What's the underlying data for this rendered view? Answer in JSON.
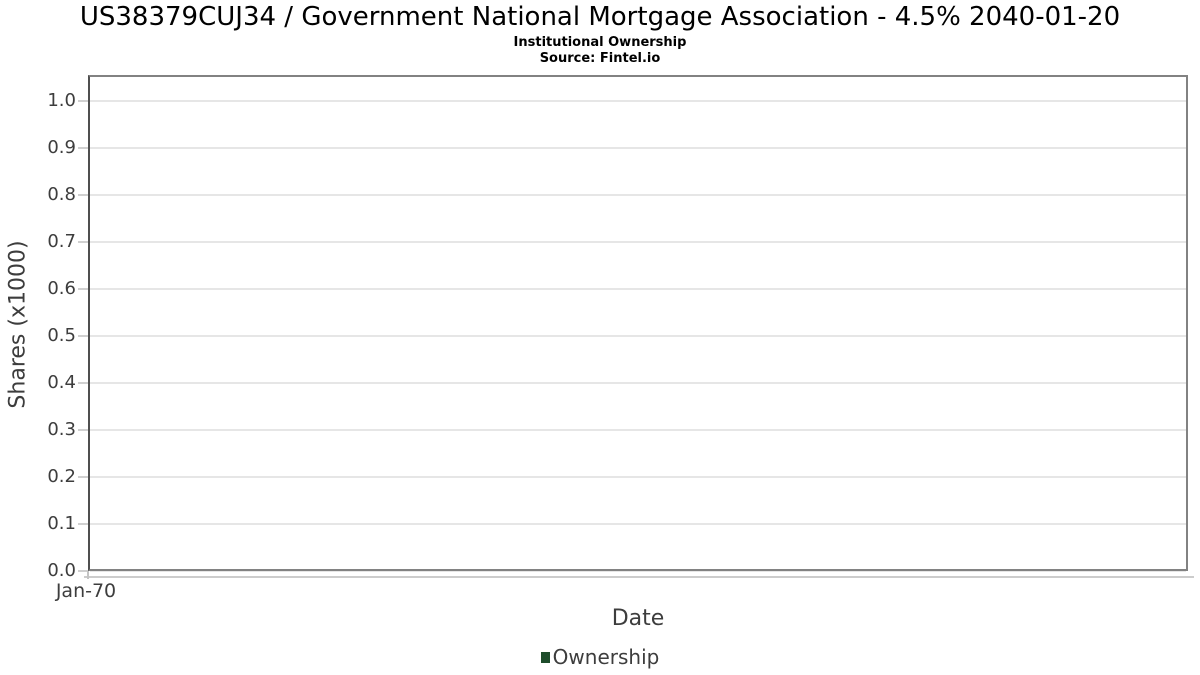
{
  "chart_data": {
    "type": "line",
    "title": "US38379CUJ34 / Government National Mortgage Association - 4.5% 2040-01-20",
    "subtitle": "Institutional Ownership",
    "source": "Source: Fintel.io",
    "xlabel": "Date",
    "ylabel": "Shares (x1000)",
    "ylim": [
      0.0,
      1.055
    ],
    "yticks": [
      0.0,
      0.1,
      0.2,
      0.3,
      0.4,
      0.5,
      0.6,
      0.7,
      0.8,
      0.9,
      1.0
    ],
    "yticklabels": [
      "0.0",
      "0.1",
      "0.2",
      "0.3",
      "0.4",
      "0.5",
      "0.6",
      "0.7",
      "0.8",
      "0.9",
      "1.0"
    ],
    "xticklabels": [
      "Jan-70"
    ],
    "grid": "horizontal-only",
    "legend_position": "bottom-center",
    "series": [
      {
        "name": "Ownership",
        "color": "#1e4d2b",
        "x": [],
        "values": []
      }
    ],
    "colors": {
      "grid": "#e6e6e6",
      "plot_border": "#808080",
      "axis_text": "#3d3d3d",
      "title_text": "#000000",
      "legend_marker": "#1e4d2b"
    }
  }
}
